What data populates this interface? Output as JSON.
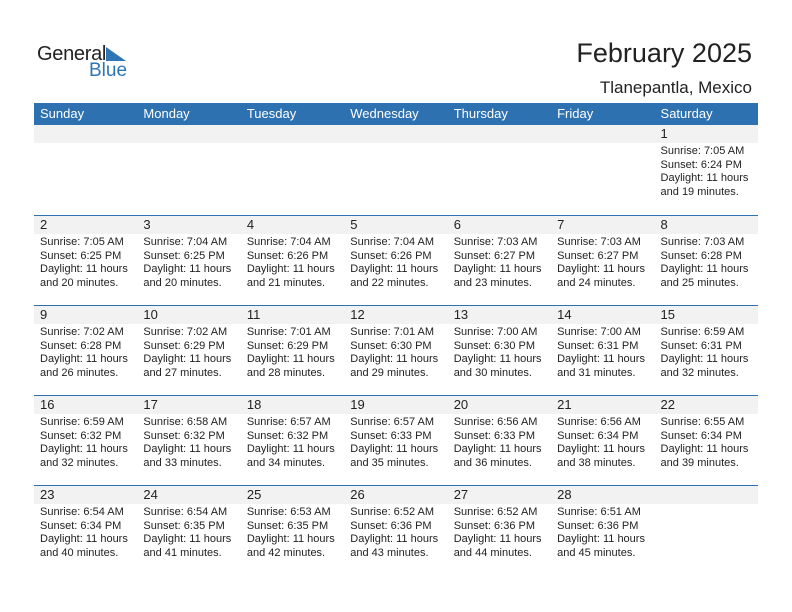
{
  "logo": {
    "general": "General",
    "blue": "Blue"
  },
  "title": "February 2025",
  "location": "Tlanepantla, Mexico",
  "colors": {
    "header": "#2e71b1",
    "brand": "#2e75b6"
  },
  "weekdays": [
    "Sunday",
    "Monday",
    "Tuesday",
    "Wednesday",
    "Thursday",
    "Friday",
    "Saturday"
  ],
  "weeks": [
    [
      null,
      null,
      null,
      null,
      null,
      null,
      {
        "day": "1",
        "sunrise": "Sunrise: 7:05 AM",
        "sunset": "Sunset: 6:24 PM",
        "daylight1": "Daylight: 11 hours",
        "daylight2": "and 19 minutes."
      }
    ],
    [
      {
        "day": "2",
        "sunrise": "Sunrise: 7:05 AM",
        "sunset": "Sunset: 6:25 PM",
        "daylight1": "Daylight: 11 hours",
        "daylight2": "and 20 minutes."
      },
      {
        "day": "3",
        "sunrise": "Sunrise: 7:04 AM",
        "sunset": "Sunset: 6:25 PM",
        "daylight1": "Daylight: 11 hours",
        "daylight2": "and 20 minutes."
      },
      {
        "day": "4",
        "sunrise": "Sunrise: 7:04 AM",
        "sunset": "Sunset: 6:26 PM",
        "daylight1": "Daylight: 11 hours",
        "daylight2": "and 21 minutes."
      },
      {
        "day": "5",
        "sunrise": "Sunrise: 7:04 AM",
        "sunset": "Sunset: 6:26 PM",
        "daylight1": "Daylight: 11 hours",
        "daylight2": "and 22 minutes."
      },
      {
        "day": "6",
        "sunrise": "Sunrise: 7:03 AM",
        "sunset": "Sunset: 6:27 PM",
        "daylight1": "Daylight: 11 hours",
        "daylight2": "and 23 minutes."
      },
      {
        "day": "7",
        "sunrise": "Sunrise: 7:03 AM",
        "sunset": "Sunset: 6:27 PM",
        "daylight1": "Daylight: 11 hours",
        "daylight2": "and 24 minutes."
      },
      {
        "day": "8",
        "sunrise": "Sunrise: 7:03 AM",
        "sunset": "Sunset: 6:28 PM",
        "daylight1": "Daylight: 11 hours",
        "daylight2": "and 25 minutes."
      }
    ],
    [
      {
        "day": "9",
        "sunrise": "Sunrise: 7:02 AM",
        "sunset": "Sunset: 6:28 PM",
        "daylight1": "Daylight: 11 hours",
        "daylight2": "and 26 minutes."
      },
      {
        "day": "10",
        "sunrise": "Sunrise: 7:02 AM",
        "sunset": "Sunset: 6:29 PM",
        "daylight1": "Daylight: 11 hours",
        "daylight2": "and 27 minutes."
      },
      {
        "day": "11",
        "sunrise": "Sunrise: 7:01 AM",
        "sunset": "Sunset: 6:29 PM",
        "daylight1": "Daylight: 11 hours",
        "daylight2": "and 28 minutes."
      },
      {
        "day": "12",
        "sunrise": "Sunrise: 7:01 AM",
        "sunset": "Sunset: 6:30 PM",
        "daylight1": "Daylight: 11 hours",
        "daylight2": "and 29 minutes."
      },
      {
        "day": "13",
        "sunrise": "Sunrise: 7:00 AM",
        "sunset": "Sunset: 6:30 PM",
        "daylight1": "Daylight: 11 hours",
        "daylight2": "and 30 minutes."
      },
      {
        "day": "14",
        "sunrise": "Sunrise: 7:00 AM",
        "sunset": "Sunset: 6:31 PM",
        "daylight1": "Daylight: 11 hours",
        "daylight2": "and 31 minutes."
      },
      {
        "day": "15",
        "sunrise": "Sunrise: 6:59 AM",
        "sunset": "Sunset: 6:31 PM",
        "daylight1": "Daylight: 11 hours",
        "daylight2": "and 32 minutes."
      }
    ],
    [
      {
        "day": "16",
        "sunrise": "Sunrise: 6:59 AM",
        "sunset": "Sunset: 6:32 PM",
        "daylight1": "Daylight: 11 hours",
        "daylight2": "and 32 minutes."
      },
      {
        "day": "17",
        "sunrise": "Sunrise: 6:58 AM",
        "sunset": "Sunset: 6:32 PM",
        "daylight1": "Daylight: 11 hours",
        "daylight2": "and 33 minutes."
      },
      {
        "day": "18",
        "sunrise": "Sunrise: 6:57 AM",
        "sunset": "Sunset: 6:32 PM",
        "daylight1": "Daylight: 11 hours",
        "daylight2": "and 34 minutes."
      },
      {
        "day": "19",
        "sunrise": "Sunrise: 6:57 AM",
        "sunset": "Sunset: 6:33 PM",
        "daylight1": "Daylight: 11 hours",
        "daylight2": "and 35 minutes."
      },
      {
        "day": "20",
        "sunrise": "Sunrise: 6:56 AM",
        "sunset": "Sunset: 6:33 PM",
        "daylight1": "Daylight: 11 hours",
        "daylight2": "and 36 minutes."
      },
      {
        "day": "21",
        "sunrise": "Sunrise: 6:56 AM",
        "sunset": "Sunset: 6:34 PM",
        "daylight1": "Daylight: 11 hours",
        "daylight2": "and 38 minutes."
      },
      {
        "day": "22",
        "sunrise": "Sunrise: 6:55 AM",
        "sunset": "Sunset: 6:34 PM",
        "daylight1": "Daylight: 11 hours",
        "daylight2": "and 39 minutes."
      }
    ],
    [
      {
        "day": "23",
        "sunrise": "Sunrise: 6:54 AM",
        "sunset": "Sunset: 6:34 PM",
        "daylight1": "Daylight: 11 hours",
        "daylight2": "and 40 minutes."
      },
      {
        "day": "24",
        "sunrise": "Sunrise: 6:54 AM",
        "sunset": "Sunset: 6:35 PM",
        "daylight1": "Daylight: 11 hours",
        "daylight2": "and 41 minutes."
      },
      {
        "day": "25",
        "sunrise": "Sunrise: 6:53 AM",
        "sunset": "Sunset: 6:35 PM",
        "daylight1": "Daylight: 11 hours",
        "daylight2": "and 42 minutes."
      },
      {
        "day": "26",
        "sunrise": "Sunrise: 6:52 AM",
        "sunset": "Sunset: 6:36 PM",
        "daylight1": "Daylight: 11 hours",
        "daylight2": "and 43 minutes."
      },
      {
        "day": "27",
        "sunrise": "Sunrise: 6:52 AM",
        "sunset": "Sunset: 6:36 PM",
        "daylight1": "Daylight: 11 hours",
        "daylight2": "and 44 minutes."
      },
      {
        "day": "28",
        "sunrise": "Sunrise: 6:51 AM",
        "sunset": "Sunset: 6:36 PM",
        "daylight1": "Daylight: 11 hours",
        "daylight2": "and 45 minutes."
      },
      null
    ]
  ]
}
